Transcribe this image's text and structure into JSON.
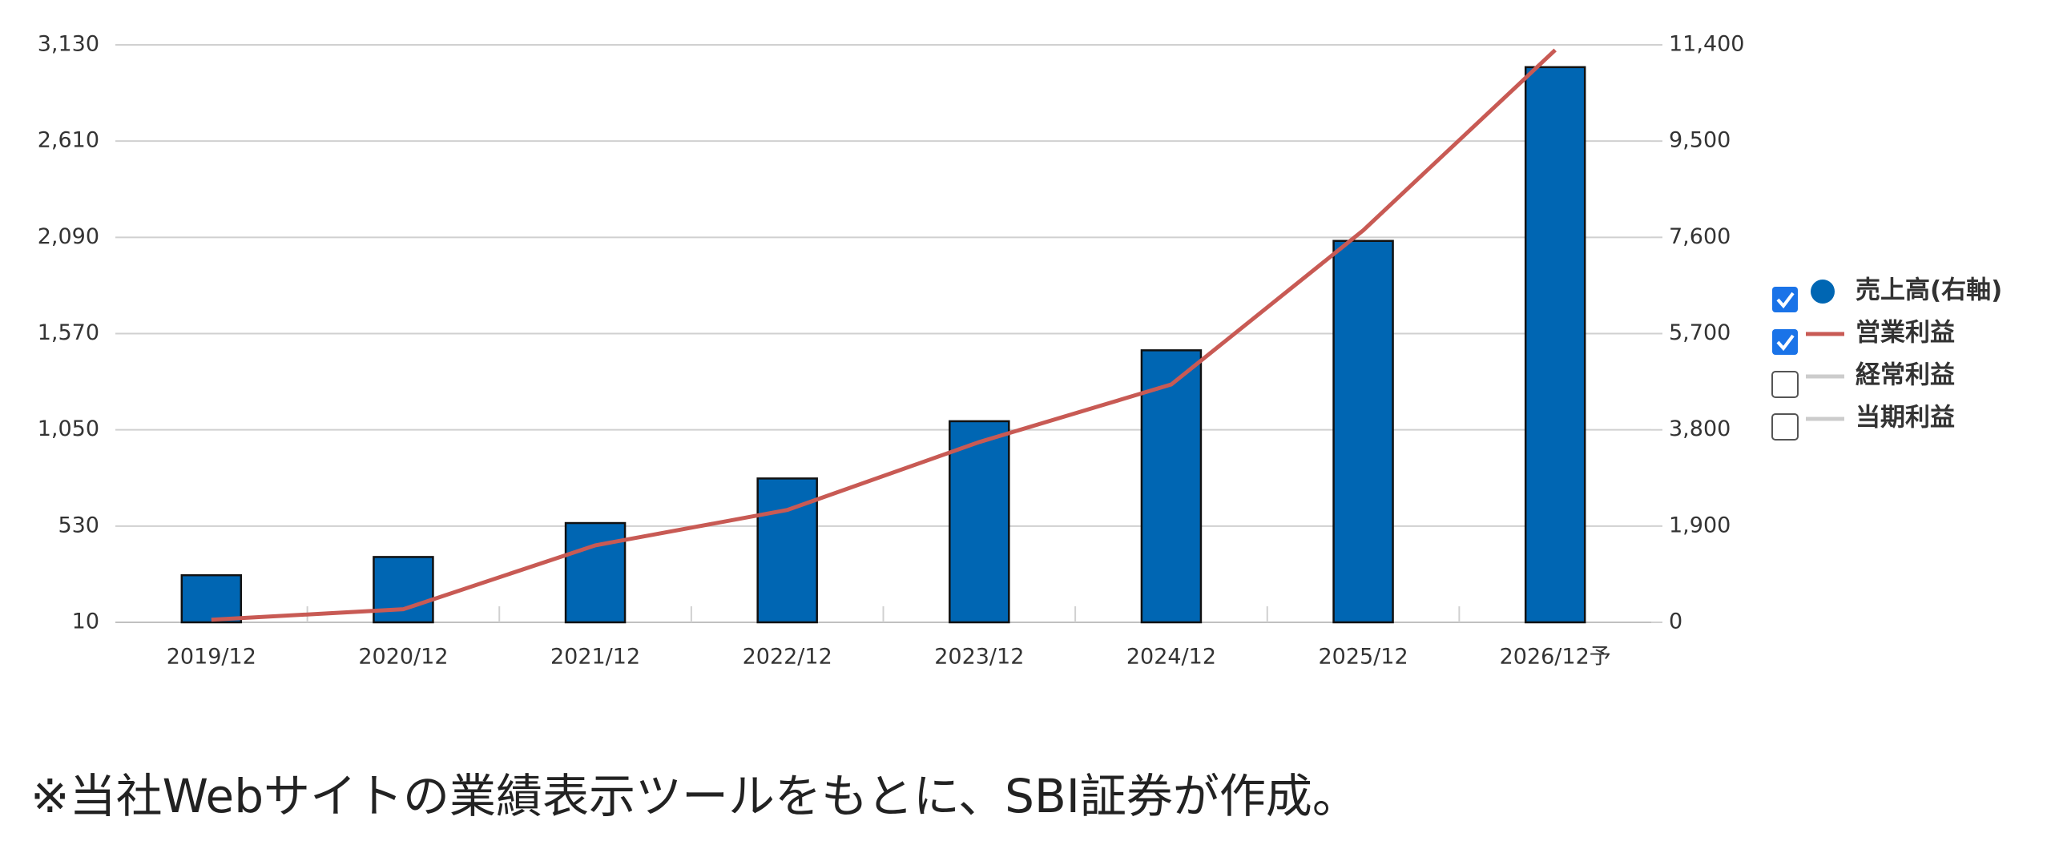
{
  "chart_data": {
    "type": "bar",
    "categories": [
      "2019/12",
      "2020/12",
      "2021/12",
      "2022/12",
      "2023/12",
      "2024/12",
      "2025/12",
      "2026/12予"
    ],
    "series": [
      {
        "name": "売上高(右軸)",
        "type": "bar",
        "axis": "y2",
        "color": "#0066b3",
        "checked": true,
        "values": [
          930,
          1290,
          1960,
          2840,
          3970,
          5370,
          7530,
          10960
        ]
      },
      {
        "name": "営業利益",
        "type": "line",
        "axis": "y",
        "color": "#c85a54",
        "checked": true,
        "values": [
          24,
          81,
          426,
          617,
          984,
          1295,
          2128,
          3102
        ]
      }
    ],
    "legend_extra": [
      {
        "name": "経常利益",
        "color": "#cccccc",
        "checked": false
      },
      {
        "name": "当期利益",
        "color": "#cccccc",
        "checked": false
      }
    ],
    "ylim": [
      10,
      3130
    ],
    "yticks": [
      10,
      530,
      {
        "value": 1050,
        "label": "1,050"
      },
      {
        "value": 1570,
        "label": "1,570"
      },
      {
        "value": 2090,
        "label": "2,090"
      },
      {
        "value": 2610,
        "label": "2,610"
      },
      {
        "value": 3130,
        "label": "3,130"
      }
    ],
    "y2lim": [
      0,
      11400
    ],
    "y2ticks": [
      0,
      {
        "value": 1900,
        "label": "1,900"
      },
      {
        "value": 3800,
        "label": "3,800"
      },
      {
        "value": 5700,
        "label": "5,700"
      },
      {
        "value": 7600,
        "label": "7,600"
      },
      {
        "value": 9500,
        "label": "9,500"
      },
      {
        "value": 11400,
        "label": "11,400"
      }
    ],
    "grid": true,
    "note": "※当社Webサイトの業績表示ツールをもとに、SBI証券が作成。"
  }
}
